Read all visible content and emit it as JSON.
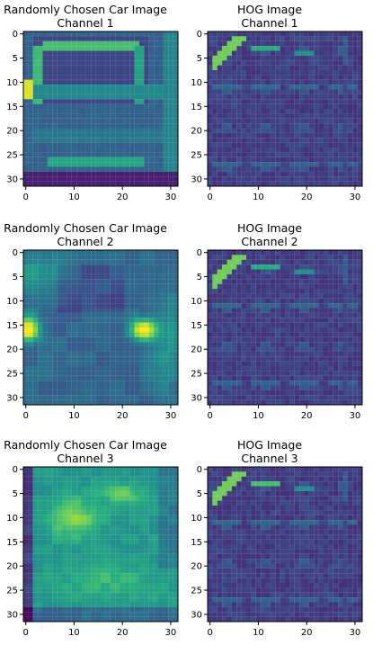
{
  "colors": {
    "colormap": "viridis",
    "background": "#ffffff"
  },
  "chart_data": [
    {
      "type": "heatmap",
      "title": "Randomly Chosen Car Image\nChannel 1",
      "image": "car-image",
      "channel": 1,
      "xticks": [
        0,
        10,
        20,
        30
      ],
      "yticks": [
        0,
        5,
        10,
        15,
        20,
        25,
        30
      ],
      "xlim": [
        0,
        31
      ],
      "ylim": [
        31,
        0
      ],
      "grid": false
    },
    {
      "type": "heatmap",
      "title": "HOG Image\nChannel 1",
      "image": "hog-image",
      "channel": 1,
      "xticks": [
        0,
        10,
        20,
        30
      ],
      "yticks": [
        0,
        5,
        10,
        15,
        20,
        25,
        30
      ],
      "xlim": [
        0,
        31
      ],
      "ylim": [
        31,
        0
      ],
      "grid": false
    },
    {
      "type": "heatmap",
      "title": "Randomly Chosen Car Image\nChannel 2",
      "image": "car-image",
      "channel": 2,
      "xticks": [
        0,
        10,
        20,
        30
      ],
      "yticks": [
        0,
        5,
        10,
        15,
        20,
        25,
        30
      ],
      "xlim": [
        0,
        31
      ],
      "ylim": [
        31,
        0
      ],
      "grid": false
    },
    {
      "type": "heatmap",
      "title": "HOG Image\nChannel 2",
      "image": "hog-image",
      "channel": 2,
      "xticks": [
        0,
        10,
        20,
        30
      ],
      "yticks": [
        0,
        5,
        10,
        15,
        20,
        25,
        30
      ],
      "xlim": [
        0,
        31
      ],
      "ylim": [
        31,
        0
      ],
      "grid": false
    },
    {
      "type": "heatmap",
      "title": "Randomly Chosen Car Image\nChannel 3",
      "image": "car-image",
      "channel": 3,
      "xticks": [
        0,
        10,
        20,
        30
      ],
      "yticks": [
        0,
        5,
        10,
        15,
        20,
        25,
        30
      ],
      "xlim": [
        0,
        31
      ],
      "ylim": [
        31,
        0
      ],
      "grid": false
    },
    {
      "type": "heatmap",
      "title": "HOG Image\nChannel 3",
      "image": "hog-image",
      "channel": 3,
      "xticks": [
        0,
        10,
        20,
        30
      ],
      "yticks": [
        0,
        5,
        10,
        15,
        20,
        25,
        30
      ],
      "xlim": [
        0,
        31
      ],
      "ylim": [
        31,
        0
      ],
      "grid": false
    }
  ]
}
